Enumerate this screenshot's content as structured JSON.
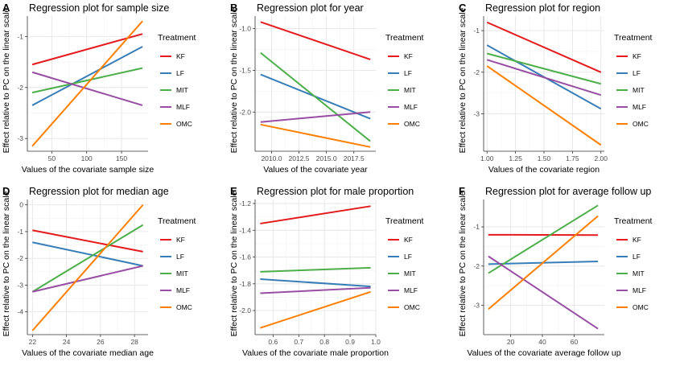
{
  "colors": {
    "KF": "#e41a1c",
    "LF": "#377eb8",
    "MIT": "#4daf4a",
    "MLF": "#984ea3",
    "OMC": "#ff7f00",
    "panel_bg": "#ffffff",
    "grid_major": "#e5e5e5",
    "grid_minor": "#f2f2f2",
    "axis": "#333333"
  },
  "ylabel_shared": "Effect relative to PC on the linear scale",
  "legend_title": "Treatment",
  "legend_entries": [
    "KF",
    "LF",
    "MIT",
    "MLF",
    "OMC"
  ],
  "chart_data": [
    {
      "type": "line",
      "panel_letter": "A",
      "title": "Regression plot for sample size",
      "xlabel": "Values of the covariate sample size",
      "ylabel": "Effect relative to PC on the linear scale",
      "xlim": [
        15,
        188
      ],
      "ylim": [
        -3.25,
        -0.6
      ],
      "xticks": [
        50,
        100,
        150
      ],
      "xtick_labels": [
        "50",
        "100",
        "150"
      ],
      "yticks": [
        -3,
        -2,
        -1
      ],
      "ytick_labels": [
        "-3",
        "-2",
        "-1"
      ],
      "grid": true,
      "legend_position": "right",
      "series": [
        {
          "name": "KF",
          "x": [
            22,
            180
          ],
          "y": [
            -1.55,
            -0.95
          ]
        },
        {
          "name": "LF",
          "x": [
            22,
            180
          ],
          "y": [
            -2.35,
            -1.2
          ]
        },
        {
          "name": "MIT",
          "x": [
            22,
            180
          ],
          "y": [
            -2.1,
            -1.62
          ]
        },
        {
          "name": "MLF",
          "x": [
            22,
            180
          ],
          "y": [
            -1.7,
            -2.35
          ]
        },
        {
          "name": "OMC",
          "x": [
            22,
            180
          ],
          "y": [
            -3.15,
            -0.7
          ]
        }
      ]
    },
    {
      "type": "line",
      "panel_letter": "B",
      "title": "Regression plot for year",
      "xlabel": "Values of the covariate year",
      "ylabel": "Effect relative to PC on the linear scale",
      "xlim": [
        2008.5,
        2019.5
      ],
      "ylim": [
        -2.47,
        -0.85
      ],
      "xticks": [
        2010,
        2012.5,
        2015,
        2017.5
      ],
      "xtick_labels": [
        "2010.0",
        "2012.5",
        "2015.0",
        "2017.5"
      ],
      "yticks": [
        -2,
        -1.5,
        -1
      ],
      "ytick_labels": [
        "-2.0",
        "-1.5",
        "-1.0"
      ],
      "grid": true,
      "legend_position": "right",
      "series": [
        {
          "name": "KF",
          "x": [
            2009,
            2019
          ],
          "y": [
            -0.92,
            -1.37
          ]
        },
        {
          "name": "LF",
          "x": [
            2009,
            2019
          ],
          "y": [
            -1.55,
            -2.08
          ]
        },
        {
          "name": "MIT",
          "x": [
            2009,
            2019
          ],
          "y": [
            -1.29,
            -2.35
          ]
        },
        {
          "name": "MLF",
          "x": [
            2009,
            2019
          ],
          "y": [
            -2.12,
            -2.0
          ]
        },
        {
          "name": "OMC",
          "x": [
            2009,
            2019
          ],
          "y": [
            -2.15,
            -2.42
          ]
        }
      ]
    },
    {
      "type": "line",
      "panel_letter": "C",
      "title": "Regression plot for region",
      "xlabel": "Values of the covariate region",
      "ylabel": "Effect relative to PC on the linear scale",
      "xlim": [
        0.97,
        2.03
      ],
      "ylim": [
        -3.9,
        -0.65
      ],
      "xticks": [
        1,
        1.25,
        1.5,
        1.75,
        2
      ],
      "xtick_labels": [
        "1.00",
        "1.25",
        "1.50",
        "1.75",
        "2.00"
      ],
      "yticks": [
        -3,
        -2,
        -1
      ],
      "ytick_labels": [
        "-3",
        "-2",
        "-1"
      ],
      "grid": true,
      "legend_position": "right",
      "series": [
        {
          "name": "KF",
          "x": [
            1,
            2
          ],
          "y": [
            -0.8,
            -2.0
          ]
        },
        {
          "name": "LF",
          "x": [
            1,
            2
          ],
          "y": [
            -1.35,
            -2.88
          ]
        },
        {
          "name": "MIT",
          "x": [
            1,
            2
          ],
          "y": [
            -1.55,
            -2.28
          ]
        },
        {
          "name": "MLF",
          "x": [
            1,
            2
          ],
          "y": [
            -1.7,
            -2.55
          ]
        },
        {
          "name": "OMC",
          "x": [
            1,
            2
          ],
          "y": [
            -1.85,
            -3.75
          ]
        }
      ]
    },
    {
      "type": "line",
      "panel_letter": "D",
      "title": "Regression plot for median age",
      "xlabel": "Values of the covariate median age",
      "ylabel": "Effect relative to PC on the linear scale",
      "xlim": [
        21.7,
        28.8
      ],
      "ylim": [
        -4.85,
        0.2
      ],
      "xticks": [
        22,
        24,
        26,
        28
      ],
      "xtick_labels": [
        "22",
        "24",
        "26",
        "28"
      ],
      "yticks": [
        -4,
        -3,
        -2,
        -1,
        0
      ],
      "ytick_labels": [
        "-4",
        "-3",
        "-2",
        "-1",
        "0"
      ],
      "grid": true,
      "legend_position": "right",
      "series": [
        {
          "name": "KF",
          "x": [
            22,
            28.5
          ],
          "y": [
            -0.95,
            -1.75
          ]
        },
        {
          "name": "LF",
          "x": [
            22,
            28.5
          ],
          "y": [
            -1.4,
            -2.28
          ]
        },
        {
          "name": "MIT",
          "x": [
            22,
            28.5
          ],
          "y": [
            -3.25,
            -0.75
          ]
        },
        {
          "name": "MLF",
          "x": [
            22,
            28.5
          ],
          "y": [
            -3.25,
            -2.28
          ]
        },
        {
          "name": "OMC",
          "x": [
            22,
            28.5
          ],
          "y": [
            -4.7,
            0.0
          ]
        }
      ]
    },
    {
      "type": "line",
      "panel_letter": "E",
      "title": "Regression plot for male proportion",
      "xlabel": "Values of the covariate male proportion",
      "ylabel": "Effect relative to PC on the linear scale",
      "xlim": [
        0.53,
        1.0
      ],
      "ylim": [
        -2.18,
        -1.17
      ],
      "xticks": [
        0.6,
        0.7,
        0.8,
        0.9,
        1.0
      ],
      "xtick_labels": [
        "0.6",
        "0.7",
        "0.8",
        "0.9",
        "1.0"
      ],
      "yticks": [
        -2.0,
        -1.8,
        -1.6,
        -1.4,
        -1.2
      ],
      "ytick_labels": [
        "-2.0",
        "-1.8",
        "-1.6",
        "-1.4",
        "-1.2"
      ],
      "grid": true,
      "legend_position": "right",
      "series": [
        {
          "name": "KF",
          "x": [
            0.55,
            0.98
          ],
          "y": [
            -1.35,
            -1.22
          ]
        },
        {
          "name": "LF",
          "x": [
            0.55,
            0.98
          ],
          "y": [
            -1.765,
            -1.82
          ]
        },
        {
          "name": "MIT",
          "x": [
            0.55,
            0.98
          ],
          "y": [
            -1.71,
            -1.68
          ]
        },
        {
          "name": "MLF",
          "x": [
            0.55,
            0.98
          ],
          "y": [
            -1.87,
            -1.83
          ]
        },
        {
          "name": "OMC",
          "x": [
            0.55,
            0.98
          ],
          "y": [
            -2.13,
            -1.86
          ]
        }
      ]
    },
    {
      "type": "line",
      "panel_letter": "F",
      "title": "Regression plot for average follow up",
      "xlabel": "Values of the covariate average follow up",
      "ylabel": "Effect relative to PC on the linear scale",
      "xlim": [
        3,
        79
      ],
      "ylim": [
        -3.75,
        -0.3
      ],
      "xticks": [
        20,
        40,
        60
      ],
      "xtick_labels": [
        "20",
        "40",
        "60"
      ],
      "yticks": [
        -3,
        -2,
        -1
      ],
      "ytick_labels": [
        "-3",
        "-2",
        "-1"
      ],
      "grid": true,
      "legend_position": "right",
      "series": [
        {
          "name": "KF",
          "x": [
            6,
            75
          ],
          "y": [
            -1.2,
            -1.21
          ]
        },
        {
          "name": "LF",
          "x": [
            6,
            75
          ],
          "y": [
            -1.95,
            -1.88
          ]
        },
        {
          "name": "MIT",
          "x": [
            6,
            75
          ],
          "y": [
            -2.18,
            -0.45
          ]
        },
        {
          "name": "MLF",
          "x": [
            6,
            75
          ],
          "y": [
            -1.75,
            -3.6
          ]
        },
        {
          "name": "OMC",
          "x": [
            6,
            75
          ],
          "y": [
            -3.1,
            -0.72
          ]
        }
      ]
    }
  ]
}
